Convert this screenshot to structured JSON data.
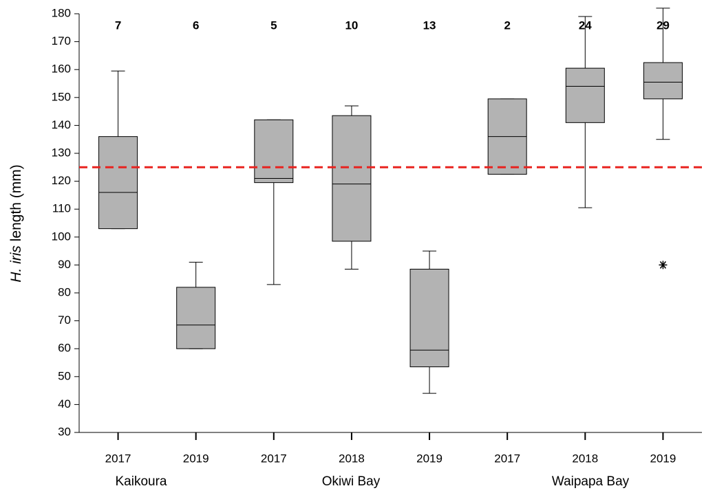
{
  "chart_data": {
    "type": "box",
    "ylabel": {
      "italic": "H. iris",
      "text": "length (mm)"
    },
    "categories": [
      "2017",
      "2019",
      "2017",
      "2018",
      "2019",
      "2017",
      "2018",
      "2019"
    ],
    "groups": [
      "Kaikoura",
      "Okiwi Bay",
      "Waipapa Bay"
    ],
    "n": [
      7,
      6,
      5,
      10,
      13,
      2,
      24,
      29
    ],
    "min": [
      103,
      60,
      83,
      88.5,
      44,
      122.5,
      110.5,
      135
    ],
    "q1": [
      103,
      60,
      119.5,
      98.5,
      53.5,
      122.5,
      141,
      149.5
    ],
    "median": [
      116,
      68.5,
      121,
      119,
      59.5,
      136,
      154,
      155.5
    ],
    "q3": [
      136,
      82,
      142,
      143.5,
      88.5,
      149.5,
      160.5,
      162.5
    ],
    "max": [
      159.5,
      91,
      142,
      147,
      95,
      149.5,
      179,
      182
    ],
    "outliers": [
      [],
      [],
      [],
      [],
      [],
      [],
      [],
      [
        90
      ]
    ],
    "color": "#b3b3b3",
    "reference_line": {
      "value": 125,
      "color": "#e8231f"
    },
    "ylim": [
      30,
      180
    ],
    "yticks": [
      30,
      40,
      50,
      60,
      70,
      80,
      90,
      100,
      110,
      120,
      130,
      140,
      150,
      160,
      170,
      180
    ]
  }
}
